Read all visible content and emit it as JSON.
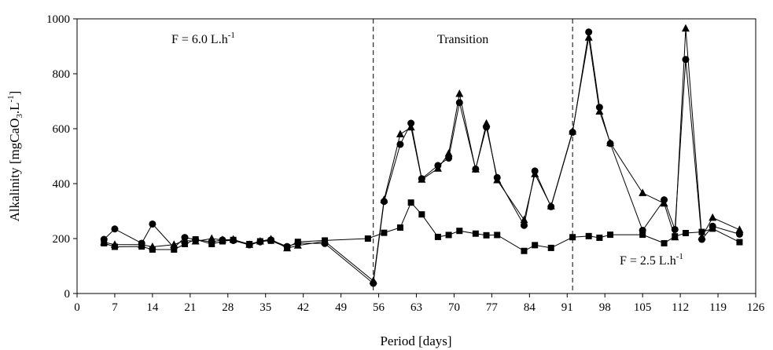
{
  "chart_data": {
    "type": "line",
    "xlabel": "Period [days]",
    "ylabel_parts": {
      "main": "Alkalinity [mgCaO",
      "sub": "3",
      "mid": ".L",
      "sup": "-1",
      "end": "]"
    },
    "xlim": [
      0,
      126
    ],
    "ylim": [
      0,
      1000
    ],
    "xticks": [
      0,
      7,
      14,
      21,
      28,
      35,
      42,
      49,
      56,
      63,
      70,
      77,
      84,
      91,
      98,
      105,
      112,
      119,
      126
    ],
    "yticks": [
      0,
      200,
      400,
      600,
      800,
      1000
    ],
    "grid": false,
    "vlines": [
      55,
      92
    ],
    "annotations": {
      "flow1": {
        "main": "F = 6.0 L.h",
        "sup": "-1"
      },
      "transition": "Transition",
      "flow2": {
        "main": "F = 2.5 L.h",
        "sup": "-1"
      }
    },
    "series": [
      {
        "marker": "circle",
        "x": [
          5,
          7,
          12,
          14,
          18,
          20,
          22,
          25,
          27,
          29,
          32,
          34,
          36,
          39,
          41,
          46,
          55,
          57,
          60,
          62,
          64,
          67,
          69,
          71,
          74,
          76,
          78,
          83,
          85,
          88,
          92,
          95,
          97,
          99,
          105,
          109,
          111,
          113,
          116,
          118,
          123
        ],
        "y": [
          197,
          235,
          183,
          253,
          167,
          204,
          196,
          188,
          195,
          193,
          177,
          188,
          195,
          171,
          183,
          182,
          37,
          335,
          543,
          620,
          418,
          466,
          493,
          695,
          453,
          606,
          422,
          248,
          446,
          316,
          587,
          952,
          678,
          546,
          230,
          341,
          233,
          852,
          197,
          245,
          216
        ]
      },
      {
        "marker": "triangle",
        "x": [
          5,
          7,
          12,
          14,
          18,
          20,
          22,
          25,
          27,
          29,
          32,
          34,
          36,
          39,
          41,
          46,
          55,
          57,
          60,
          62,
          64,
          67,
          69,
          71,
          74,
          76,
          78,
          83,
          85,
          88,
          92,
          95,
          97,
          99,
          105,
          109,
          111,
          113,
          116,
          118,
          123
        ],
        "y": [
          187,
          178,
          178,
          170,
          178,
          193,
          190,
          200,
          195,
          197,
          178,
          190,
          198,
          165,
          175,
          190,
          46,
          341,
          580,
          605,
          415,
          455,
          510,
          727,
          452,
          619,
          413,
          268,
          435,
          318,
          590,
          932,
          663,
          548,
          366,
          328,
          205,
          965,
          206,
          276,
          232
        ]
      },
      {
        "marker": "square",
        "x": [
          5,
          7,
          12,
          14,
          18,
          20,
          22,
          25,
          27,
          29,
          32,
          34,
          36,
          39,
          41,
          46,
          54,
          57,
          60,
          62,
          64,
          67,
          69,
          71,
          74,
          76,
          78,
          83,
          85,
          88,
          92,
          95,
          97,
          99,
          105,
          109,
          111,
          113,
          116,
          118,
          123
        ],
        "y": [
          183,
          170,
          171,
          160,
          160,
          180,
          197,
          180,
          190,
          195,
          180,
          190,
          192,
          168,
          188,
          193,
          200,
          221,
          240,
          331,
          288,
          206,
          213,
          228,
          218,
          212,
          213,
          155,
          176,
          166,
          205,
          209,
          203,
          214,
          214,
          183,
          208,
          220,
          224,
          236,
          187
        ]
      }
    ]
  }
}
